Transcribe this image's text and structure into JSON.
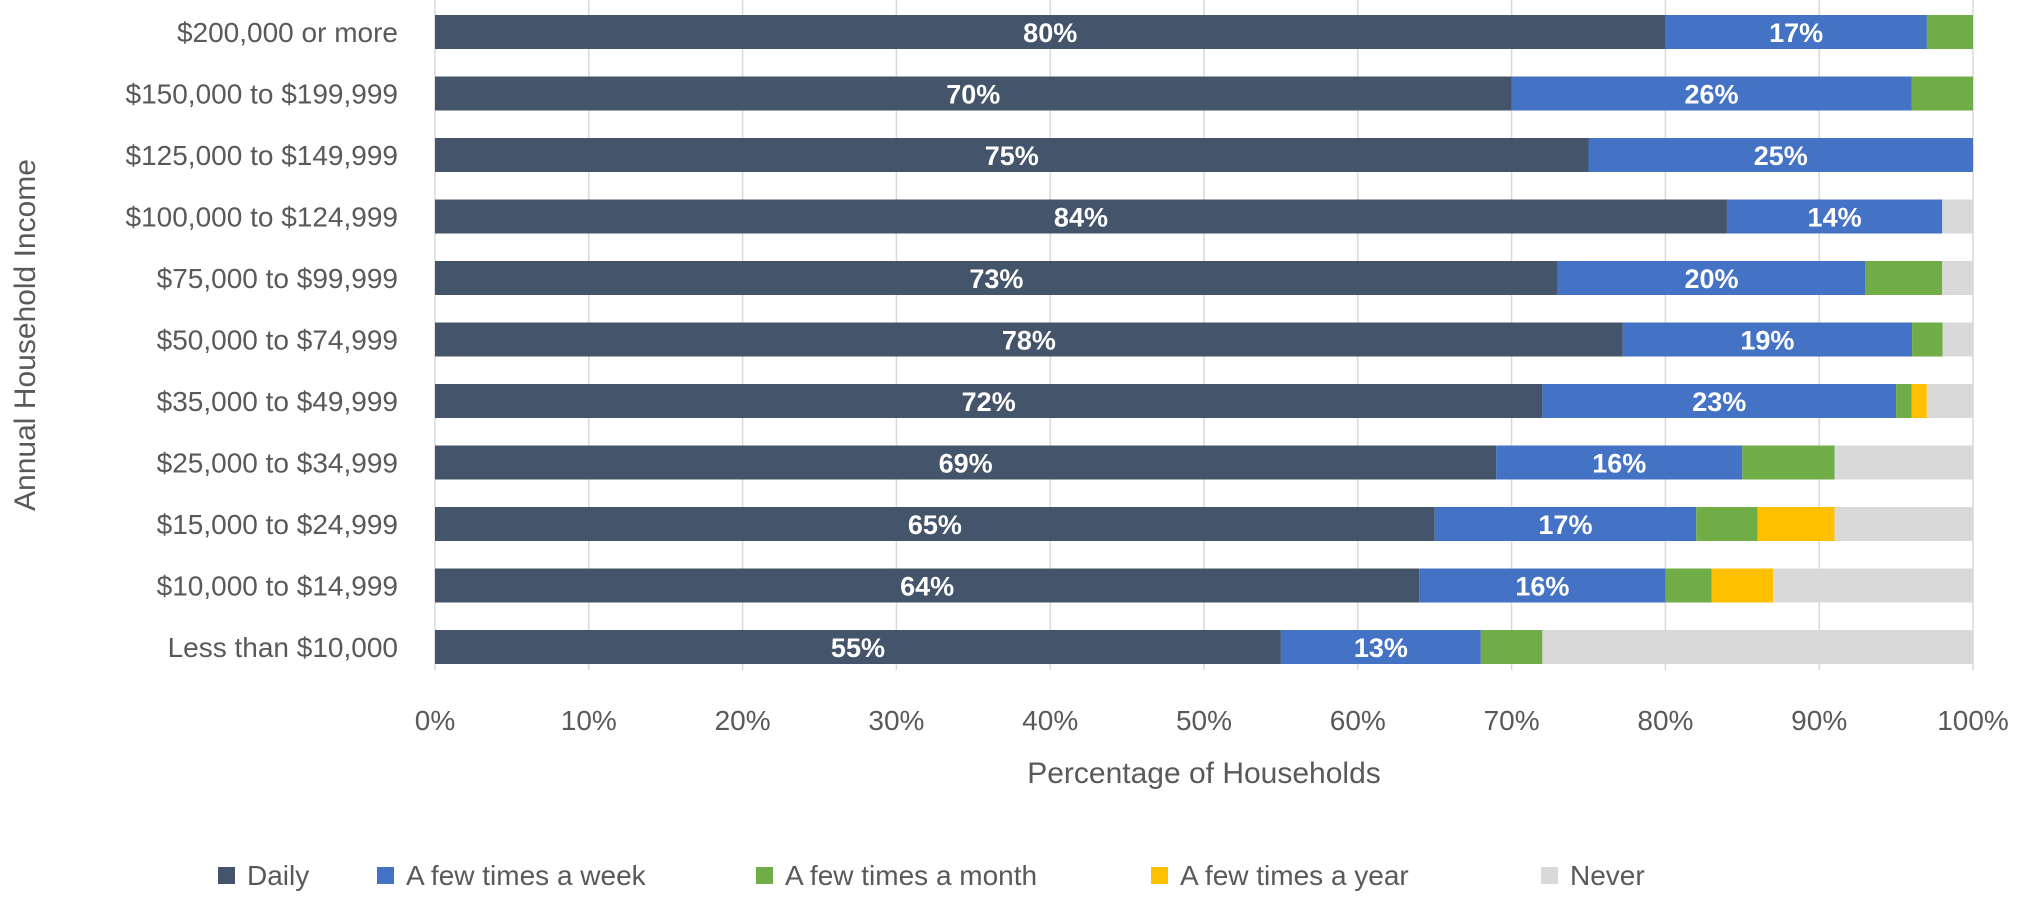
{
  "chart_data": {
    "type": "bar",
    "orientation": "horizontal",
    "stacked": true,
    "percent_stacked": true,
    "xlabel": "Percentage of Households",
    "ylabel": "Annual Household Income",
    "xlim": [
      0,
      100
    ],
    "x_ticks": [
      "0%",
      "10%",
      "20%",
      "30%",
      "40%",
      "50%",
      "60%",
      "70%",
      "80%",
      "90%",
      "100%"
    ],
    "grid": true,
    "legend_position": "bottom",
    "categories": [
      "$200,000 or more",
      "$150,000 to $199,999",
      "$125,000 to $149,999",
      "$100,000 to $124,999",
      "$75,000 to $99,999",
      "$50,000 to $74,999",
      "$35,000 to $49,999",
      "$25,000 to $34,999",
      "$15,000 to $24,999",
      "$10,000 to $14,999",
      "Less than $10,000"
    ],
    "series": [
      {
        "name": "Daily",
        "color": "#44546a",
        "show_labels": true,
        "values": [
          80,
          70,
          75,
          84,
          73,
          78,
          72,
          69,
          65,
          64,
          55
        ],
        "labels": [
          "80%",
          "70%",
          "75%",
          "84%",
          "73%",
          "78%",
          "72%",
          "69%",
          "65%",
          "64%",
          "55%"
        ]
      },
      {
        "name": "A few times a week",
        "color": "#4472c4",
        "show_labels": true,
        "values": [
          17,
          26,
          25,
          14,
          20,
          19,
          23,
          16,
          17,
          16,
          13
        ],
        "labels": [
          "17%",
          "26%",
          "25%",
          "14%",
          "20%",
          "19%",
          "23%",
          "16%",
          "17%",
          "16%",
          "13%"
        ]
      },
      {
        "name": "A few times a month",
        "color": "#70ad47",
        "show_labels": false,
        "values": [
          3,
          4,
          0,
          0,
          5,
          2,
          1,
          6,
          4,
          3,
          4
        ]
      },
      {
        "name": "A few times a year",
        "color": "#ffc000",
        "show_labels": false,
        "values": [
          0,
          0,
          0,
          0,
          0,
          0,
          1,
          0,
          5,
          4,
          0
        ]
      },
      {
        "name": "Never",
        "color": "#d9d9d9",
        "show_labels": false,
        "values": [
          0,
          0,
          0,
          2,
          2,
          2,
          3,
          9,
          9,
          13,
          28
        ]
      }
    ]
  }
}
